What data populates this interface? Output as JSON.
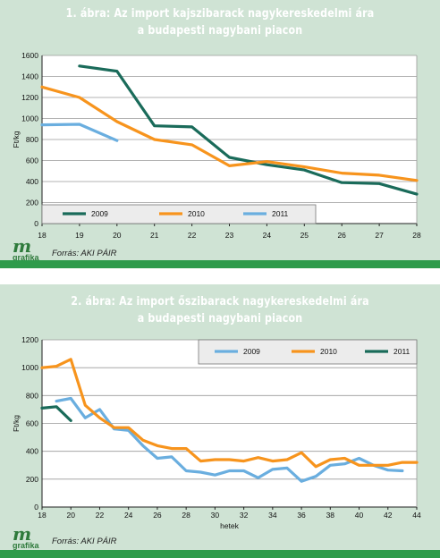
{
  "charts": [
    {
      "title_line1": "1. ábra: Az import kajszibarack nagykereskedelmi ára",
      "title_line2": "a budapesti nagybani piacon",
      "source": "Forrás: AKI PÁIR",
      "logo_m": "m",
      "logo_text": "grafika"
    },
    {
      "title_line1": "2. ábra: Az import őszibarack nagykereskedelmi ára",
      "title_line2": "a budapesti nagybani piacon",
      "source": "Forrás: AKI PÁIR",
      "logo_m": "m",
      "logo_text": "grafika"
    }
  ],
  "chart_data": [
    {
      "type": "line",
      "title": "1. ábra: Az import kajszibarack nagykereskedelmi ára a budapesti nagybani piacon",
      "xlabel": "",
      "ylabel": "Ft/kg",
      "xlim": [
        18,
        28
      ],
      "ylim": [
        0,
        1600
      ],
      "x_ticks": [
        "18",
        "19",
        "20",
        "21",
        "22",
        "23",
        "24",
        "25",
        "26",
        "27",
        "28"
      ],
      "y_ticks": [
        "0",
        "200",
        "400",
        "600",
        "800",
        "1000",
        "1200",
        "1400",
        "1600"
      ],
      "grid": true,
      "legend": "bottom",
      "series": [
        {
          "name": "2009",
          "color": "#1a6b5a",
          "x": [
            19,
            20,
            21,
            22,
            23,
            24,
            25,
            26,
            27,
            28
          ],
          "values": [
            1500,
            1450,
            930,
            920,
            630,
            560,
            510,
            390,
            380,
            280
          ]
        },
        {
          "name": "2010",
          "color": "#f7941d",
          "x": [
            18,
            19,
            20,
            21,
            22,
            23,
            24,
            25,
            26,
            27,
            28
          ],
          "values": [
            1300,
            1200,
            970,
            800,
            750,
            550,
            590,
            540,
            480,
            460,
            410
          ]
        },
        {
          "name": "2011",
          "color": "#6aaedf",
          "x": [
            18,
            19,
            20
          ],
          "values": [
            940,
            945,
            790
          ]
        }
      ]
    },
    {
      "type": "line",
      "title": "2. ábra: Az import őszibarack nagykereskedelmi ára a budapesti nagybani piacon",
      "xlabel": "hetek",
      "ylabel": "Ft/kg",
      "xlim": [
        18,
        44
      ],
      "ylim": [
        0,
        1200
      ],
      "x_ticks": [
        "18",
        "20",
        "22",
        "24",
        "26",
        "28",
        "30",
        "32",
        "34",
        "36",
        "38",
        "40",
        "42",
        "44"
      ],
      "y_ticks": [
        "0",
        "200",
        "400",
        "600",
        "800",
        "1000",
        "1200"
      ],
      "grid": true,
      "legend": "top-right",
      "series": [
        {
          "name": "2009",
          "color": "#6aaedf",
          "x": [
            19,
            20,
            21,
            22,
            23,
            24,
            25,
            26,
            27,
            28,
            29,
            30,
            31,
            32,
            33,
            34,
            35,
            36,
            37,
            38,
            39,
            40,
            41,
            42,
            43
          ],
          "values": [
            760,
            780,
            640,
            700,
            560,
            550,
            440,
            350,
            360,
            260,
            250,
            230,
            260,
            260,
            210,
            270,
            280,
            185,
            220,
            300,
            310,
            350,
            300,
            265,
            260
          ]
        },
        {
          "name": "2010",
          "color": "#f7941d",
          "x": [
            18,
            19,
            20,
            21,
            22,
            23,
            24,
            25,
            26,
            27,
            28,
            29,
            30,
            31,
            32,
            33,
            34,
            35,
            36,
            37,
            38,
            39,
            40,
            41,
            42,
            43,
            44
          ],
          "values": [
            1000,
            1010,
            1060,
            730,
            640,
            570,
            570,
            480,
            440,
            420,
            420,
            330,
            340,
            340,
            330,
            355,
            330,
            340,
            390,
            290,
            340,
            350,
            300,
            300,
            300,
            320,
            320
          ]
        },
        {
          "name": "2011",
          "color": "#1a6b5a",
          "x": [
            18,
            19,
            20
          ],
          "values": [
            710,
            720,
            620
          ]
        }
      ]
    }
  ]
}
